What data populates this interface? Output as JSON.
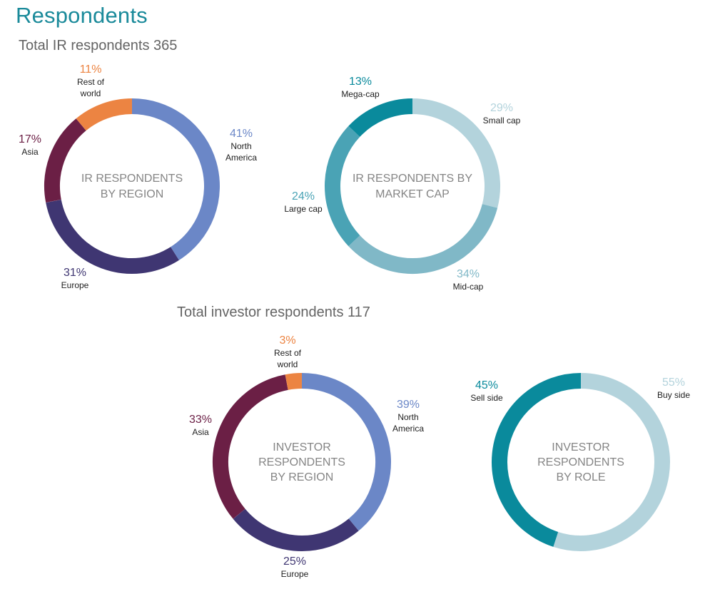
{
  "page": {
    "title": "Respondents",
    "title_color": "#1a8a9a"
  },
  "sections": {
    "ir_total": "Total IR respondents 365",
    "investor_total": "Total investor respondents 117"
  },
  "chart_data": [
    {
      "type": "pie",
      "donut": true,
      "center_label": [
        "IR RESPONDENTS",
        "BY REGION"
      ],
      "slices": [
        {
          "label": [
            "North",
            "America"
          ],
          "value": 41,
          "pct_label": "41%",
          "color": "#6b87c7"
        },
        {
          "label": [
            "Europe"
          ],
          "value": 31,
          "pct_label": "31%",
          "color": "#3f3672"
        },
        {
          "label": [
            "Asia"
          ],
          "value": 17,
          "pct_label": "17%",
          "color": "#6b1f45"
        },
        {
          "label": [
            "Rest of",
            "world"
          ],
          "value": 11,
          "pct_label": "11%",
          "color": "#ec8442"
        }
      ]
    },
    {
      "type": "pie",
      "donut": true,
      "center_label": [
        "IR RESPONDENTS BY",
        "MARKET CAP"
      ],
      "slices": [
        {
          "label": [
            "Small cap"
          ],
          "value": 29,
          "pct_label": "29%",
          "color": "#b3d3dc"
        },
        {
          "label": [
            "Mid-cap"
          ],
          "value": 34,
          "pct_label": "34%",
          "color": "#80b8c7"
        },
        {
          "label": [
            "Large cap"
          ],
          "value": 24,
          "pct_label": "24%",
          "color": "#4aa3b5"
        },
        {
          "label": [
            "Mega-cap"
          ],
          "value": 13,
          "pct_label": "13%",
          "color": "#0a8a9c"
        }
      ]
    },
    {
      "type": "pie",
      "donut": true,
      "center_label": [
        "INVESTOR",
        "RESPONDENTS",
        "BY REGION"
      ],
      "slices": [
        {
          "label": [
            "North",
            "America"
          ],
          "value": 39,
          "pct_label": "39%",
          "color": "#6b87c7"
        },
        {
          "label": [
            "Europe"
          ],
          "value": 25,
          "pct_label": "25%",
          "color": "#3f3672"
        },
        {
          "label": [
            "Asia"
          ],
          "value": 33,
          "pct_label": "33%",
          "color": "#6b1f45"
        },
        {
          "label": [
            "Rest of",
            "world"
          ],
          "value": 3,
          "pct_label": "3%",
          "color": "#ec8442"
        }
      ]
    },
    {
      "type": "pie",
      "donut": true,
      "center_label": [
        "INVESTOR",
        "RESPONDENTS",
        "BY ROLE"
      ],
      "slices": [
        {
          "label": [
            "Buy side"
          ],
          "value": 55,
          "pct_label": "55%",
          "color": "#b3d3dc"
        },
        {
          "label": [
            "Sell side"
          ],
          "value": 45,
          "pct_label": "45%",
          "color": "#0a8a9c"
        }
      ]
    }
  ]
}
